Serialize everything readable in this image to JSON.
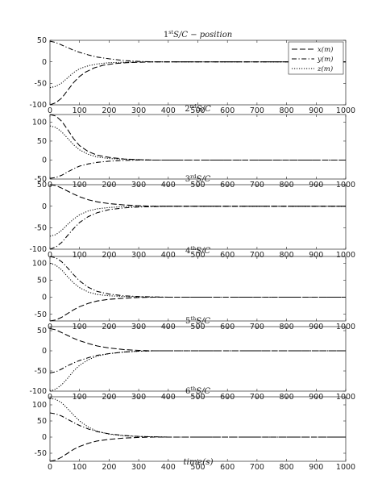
{
  "chart_data": {
    "type": "line",
    "xlim": [
      0,
      1000
    ],
    "xticks": [
      0,
      100,
      200,
      300,
      400,
      500,
      600,
      700,
      800,
      900,
      1000
    ],
    "xlabel": "time(s)",
    "grid": false,
    "legend": {
      "placement": "top-right",
      "entries": [
        "x(m)",
        "y(m)",
        "z(m)"
      ]
    },
    "line_styles": {
      "x(m)": "dashed",
      "y(m)": "dash-dot",
      "z(m)": "dotted"
    },
    "colors": {
      "lines": "#000000",
      "axes": "#262626"
    },
    "subplots": [
      {
        "title_base": "1",
        "title_sup": "st",
        "title_rest": "S/C − position",
        "ylim": [
          -100,
          50
        ],
        "yticks": [
          -100,
          -50,
          0,
          50
        ],
        "series": [
          {
            "name": "x(m)",
            "x": [
              0,
              20,
              40,
              60,
              80,
              100,
              120,
              150,
              180,
              220,
              260,
              300,
              350,
              400,
              500,
              1000
            ],
            "y": [
              -100,
              -95,
              -84,
              -66,
              -48,
              -34,
              -24,
              -14,
              -8,
              -4,
              -2,
              -1,
              0,
              0,
              0,
              0
            ]
          },
          {
            "name": "y(m)",
            "x": [
              0,
              20,
              40,
              60,
              80,
              100,
              130,
              160,
              200,
              250,
              300,
              350,
              400,
              500,
              1000
            ],
            "y": [
              48,
              45,
              39,
              33,
              27,
              22,
              16,
              11,
              7,
              3,
              1,
              0,
              0,
              0,
              0
            ]
          },
          {
            "name": "z(m)",
            "x": [
              0,
              20,
              40,
              60,
              80,
              100,
              130,
              160,
              200,
              250,
              300,
              350,
              400,
              1000
            ],
            "y": [
              -60,
              -57,
              -49,
              -37,
              -25,
              -16,
              -9,
              -5,
              -2,
              -1,
              0,
              0,
              0,
              0
            ]
          }
        ]
      },
      {
        "title_base": "2",
        "title_sup": "nd",
        "title_rest": "S/C",
        "ylim": [
          -50,
          120
        ],
        "yticks": [
          -50,
          0,
          50,
          100
        ],
        "series": [
          {
            "name": "x(m)",
            "x": [
              0,
              20,
              40,
              60,
              80,
              100,
              130,
              160,
              200,
              250,
              300,
              350,
              400,
              500,
              1000
            ],
            "y": [
              120,
              116,
              102,
              80,
              56,
              38,
              22,
              13,
              7,
              3,
              1,
              0,
              0,
              0,
              0
            ]
          },
          {
            "name": "y(m)",
            "x": [
              0,
              20,
              40,
              60,
              80,
              100,
              130,
              160,
              200,
              250,
              300,
              350,
              400,
              500,
              1000
            ],
            "y": [
              -48,
              -46,
              -40,
              -31,
              -23,
              -16,
              -10,
              -6,
              -3,
              -1,
              0,
              0,
              0,
              0,
              0
            ]
          },
          {
            "name": "z(m)",
            "x": [
              0,
              20,
              40,
              60,
              80,
              100,
              130,
              160,
              200,
              250,
              300,
              350,
              400,
              1000
            ],
            "y": [
              90,
              86,
              74,
              57,
              40,
              27,
              15,
              8,
              4,
              2,
              1,
              0,
              0,
              0
            ]
          }
        ]
      },
      {
        "title_base": "3",
        "title_sup": "rd",
        "title_rest": "S/C",
        "ylim": [
          -100,
          50
        ],
        "yticks": [
          -100,
          -50,
          0,
          50
        ],
        "series": [
          {
            "name": "x(m)",
            "x": [
              0,
              20,
              40,
              60,
              80,
              100,
              130,
              160,
              200,
              250,
              300,
              350,
              400,
              500,
              1000
            ],
            "y": [
              50,
              48,
              42,
              35,
              28,
              22,
              15,
              10,
              6,
              3,
              1,
              0,
              0,
              0,
              0
            ]
          },
          {
            "name": "y(m)",
            "x": [
              0,
              20,
              40,
              60,
              80,
              100,
              130,
              160,
              200,
              250,
              300,
              350,
              400,
              500,
              1000
            ],
            "y": [
              -100,
              -95,
              -84,
              -68,
              -52,
              -38,
              -24,
              -15,
              -8,
              -4,
              -2,
              -1,
              0,
              0,
              0
            ]
          },
          {
            "name": "z(m)",
            "x": [
              0,
              20,
              40,
              60,
              80,
              100,
              130,
              160,
              200,
              250,
              300,
              350,
              400,
              1000
            ],
            "y": [
              -70,
              -66,
              -56,
              -42,
              -30,
              -20,
              -11,
              -6,
              -3,
              -1,
              0,
              0,
              0,
              0
            ]
          }
        ]
      },
      {
        "title_base": "4",
        "title_sup": "th",
        "title_rest": "S/C",
        "ylim": [
          -70,
          120
        ],
        "yticks": [
          -50,
          0,
          50,
          100
        ],
        "series": [
          {
            "name": "x(m)",
            "x": [
              0,
              20,
              40,
              60,
              80,
              100,
              130,
              160,
              200,
              250,
              300,
              350,
              400,
              500,
              1000
            ],
            "y": [
              -70,
              -67,
              -59,
              -48,
              -37,
              -28,
              -18,
              -11,
              -6,
              -3,
              -1,
              0,
              0,
              0,
              0
            ]
          },
          {
            "name": "y(m)",
            "x": [
              0,
              20,
              40,
              60,
              80,
              100,
              130,
              160,
              200,
              250,
              300,
              350,
              400,
              500,
              1000
            ],
            "y": [
              120,
              116,
              104,
              86,
              66,
              48,
              29,
              17,
              9,
              4,
              2,
              1,
              0,
              0,
              0
            ]
          },
          {
            "name": "z(m)",
            "x": [
              0,
              20,
              40,
              60,
              80,
              100,
              130,
              160,
              200,
              250,
              300,
              350,
              400,
              1000
            ],
            "y": [
              100,
              94,
              80,
              60,
              42,
              28,
              15,
              8,
              4,
              2,
              1,
              0,
              0,
              0
            ]
          }
        ]
      },
      {
        "title_base": "5",
        "title_sup": "th",
        "title_rest": "S/C",
        "ylim": [
          -100,
          60
        ],
        "yticks": [
          -100,
          -50,
          0,
          50
        ],
        "series": [
          {
            "name": "x(m)",
            "x": [
              0,
              20,
              40,
              60,
              80,
              100,
              130,
              160,
              200,
              250,
              300,
              350,
              400,
              500,
              1000
            ],
            "y": [
              55,
              52,
              45,
              38,
              31,
              25,
              18,
              12,
              7,
              3,
              1,
              0,
              0,
              0,
              0
            ]
          },
          {
            "name": "y(m)",
            "x": [
              0,
              20,
              40,
              60,
              80,
              100,
              130,
              160,
              200,
              250,
              300,
              350,
              400,
              500,
              1000
            ],
            "y": [
              -55,
              -52,
              -45,
              -37,
              -30,
              -24,
              -17,
              -11,
              -7,
              -3,
              -1,
              0,
              0,
              0,
              0
            ]
          },
          {
            "name": "z(m)",
            "x": [
              0,
              20,
              40,
              60,
              80,
              100,
              130,
              160,
              200,
              250,
              300,
              350,
              400,
              1000
            ],
            "y": [
              -100,
              -95,
              -84,
              -68,
              -50,
              -36,
              -22,
              -13,
              -7,
              -3,
              -1,
              0,
              0,
              0
            ]
          }
        ]
      },
      {
        "title_base": "6",
        "title_sup": "th",
        "title_rest": "S/C",
        "ylim": [
          -75,
          125
        ],
        "yticks": [
          -50,
          0,
          50,
          100
        ],
        "series": [
          {
            "name": "x(m)",
            "x": [
              0,
              20,
              40,
              60,
              80,
              100,
              130,
              160,
              200,
              250,
              300,
              350,
              400,
              500,
              1000
            ],
            "y": [
              -75,
              -71,
              -62,
              -50,
              -38,
              -29,
              -19,
              -12,
              -7,
              -3,
              -1,
              0,
              0,
              0,
              0
            ]
          },
          {
            "name": "y(m)",
            "x": [
              0,
              20,
              40,
              60,
              80,
              100,
              130,
              160,
              200,
              250,
              300,
              350,
              400,
              500,
              1000
            ],
            "y": [
              75,
              72,
              65,
              55,
              45,
              36,
              25,
              17,
              10,
              5,
              2,
              1,
              0,
              0,
              0
            ]
          },
          {
            "name": "z(m)",
            "x": [
              0,
              20,
              40,
              60,
              80,
              100,
              130,
              160,
              200,
              250,
              300,
              350,
              400,
              1000
            ],
            "y": [
              120,
              117,
              106,
              88,
              68,
              50,
              31,
              18,
              9,
              4,
              2,
              1,
              0,
              0
            ]
          }
        ]
      }
    ]
  }
}
